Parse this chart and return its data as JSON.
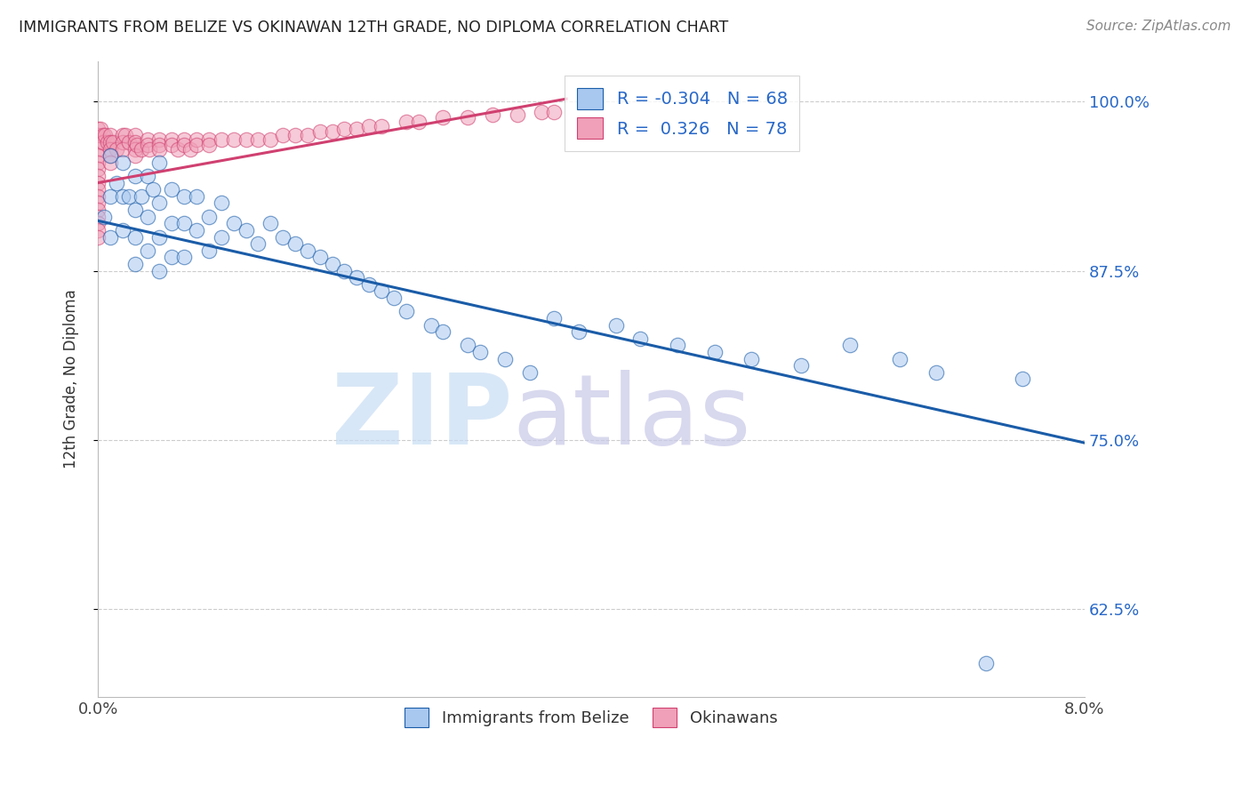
{
  "title": "IMMIGRANTS FROM BELIZE VS OKINAWAN 12TH GRADE, NO DIPLOMA CORRELATION CHART",
  "source": "Source: ZipAtlas.com",
  "ylabel": "12th Grade, No Diploma",
  "ytick_labels": [
    "100.0%",
    "87.5%",
    "75.0%",
    "62.5%"
  ],
  "ytick_values": [
    1.0,
    0.875,
    0.75,
    0.625
  ],
  "xlim": [
    0.0,
    0.08
  ],
  "ylim": [
    0.56,
    1.03
  ],
  "legend_r_belize": "-0.304",
  "legend_n_belize": "68",
  "legend_r_okinawan": "0.326",
  "legend_n_okinawan": "78",
  "color_belize": "#a8c8f0",
  "color_okinawan": "#f0a0b8",
  "trendline_color_belize": "#1a5ca8",
  "trendline_color_okinawan": "#d04070",
  "belize_trendline_x": [
    0.0,
    0.08
  ],
  "belize_trendline_y": [
    0.912,
    0.748
  ],
  "okinawan_trendline_x": [
    0.0,
    0.038
  ],
  "okinawan_trendline_y": [
    0.94,
    1.002
  ],
  "belize_x": [
    0.0005,
    0.001,
    0.001,
    0.001,
    0.0015,
    0.002,
    0.002,
    0.002,
    0.0025,
    0.003,
    0.003,
    0.003,
    0.003,
    0.0035,
    0.004,
    0.004,
    0.004,
    0.0045,
    0.005,
    0.005,
    0.005,
    0.005,
    0.006,
    0.006,
    0.006,
    0.007,
    0.007,
    0.007,
    0.008,
    0.008,
    0.009,
    0.009,
    0.01,
    0.01,
    0.011,
    0.012,
    0.013,
    0.014,
    0.015,
    0.016,
    0.017,
    0.018,
    0.019,
    0.02,
    0.021,
    0.022,
    0.023,
    0.024,
    0.025,
    0.027,
    0.028,
    0.03,
    0.031,
    0.033,
    0.035,
    0.037,
    0.039,
    0.042,
    0.044,
    0.047,
    0.05,
    0.053,
    0.057,
    0.061,
    0.065,
    0.068,
    0.072,
    0.075
  ],
  "belize_y": [
    0.915,
    0.96,
    0.93,
    0.9,
    0.94,
    0.955,
    0.93,
    0.905,
    0.93,
    0.945,
    0.92,
    0.9,
    0.88,
    0.93,
    0.945,
    0.915,
    0.89,
    0.935,
    0.955,
    0.925,
    0.9,
    0.875,
    0.935,
    0.91,
    0.885,
    0.93,
    0.91,
    0.885,
    0.93,
    0.905,
    0.915,
    0.89,
    0.925,
    0.9,
    0.91,
    0.905,
    0.895,
    0.91,
    0.9,
    0.895,
    0.89,
    0.885,
    0.88,
    0.875,
    0.87,
    0.865,
    0.86,
    0.855,
    0.845,
    0.835,
    0.83,
    0.82,
    0.815,
    0.81,
    0.8,
    0.84,
    0.83,
    0.835,
    0.825,
    0.82,
    0.815,
    0.81,
    0.805,
    0.82,
    0.81,
    0.8,
    0.585,
    0.795
  ],
  "okinawan_x": [
    0.0,
    0.0,
    0.0,
    0.0,
    0.0,
    0.0002,
    0.0004,
    0.0004,
    0.0006,
    0.0008,
    0.001,
    0.001,
    0.001,
    0.0012,
    0.0015,
    0.002,
    0.002,
    0.002,
    0.0022,
    0.0025,
    0.003,
    0.003,
    0.003,
    0.003,
    0.0032,
    0.0035,
    0.004,
    0.004,
    0.0042,
    0.005,
    0.005,
    0.005,
    0.006,
    0.006,
    0.0065,
    0.007,
    0.007,
    0.0075,
    0.008,
    0.008,
    0.009,
    0.009,
    0.01,
    0.011,
    0.012,
    0.013,
    0.014,
    0.015,
    0.016,
    0.017,
    0.018,
    0.019,
    0.02,
    0.021,
    0.022,
    0.023,
    0.025,
    0.026,
    0.028,
    0.03,
    0.032,
    0.034,
    0.036,
    0.037,
    0.0,
    0.0,
    0.0,
    0.0,
    0.0,
    0.0,
    0.0,
    0.0,
    0.0,
    0.0,
    0.0,
    0.0,
    0.001,
    0.001
  ],
  "okinawan_y": [
    0.98,
    0.975,
    0.97,
    0.965,
    0.96,
    0.98,
    0.975,
    0.97,
    0.975,
    0.97,
    0.975,
    0.97,
    0.965,
    0.97,
    0.965,
    0.975,
    0.97,
    0.965,
    0.975,
    0.97,
    0.975,
    0.97,
    0.965,
    0.96,
    0.968,
    0.965,
    0.972,
    0.968,
    0.965,
    0.972,
    0.968,
    0.965,
    0.972,
    0.968,
    0.965,
    0.972,
    0.968,
    0.965,
    0.972,
    0.968,
    0.972,
    0.968,
    0.972,
    0.972,
    0.972,
    0.972,
    0.972,
    0.975,
    0.975,
    0.975,
    0.978,
    0.978,
    0.98,
    0.98,
    0.982,
    0.982,
    0.985,
    0.985,
    0.988,
    0.988,
    0.99,
    0.99,
    0.992,
    0.992,
    0.955,
    0.95,
    0.945,
    0.94,
    0.935,
    0.93,
    0.925,
    0.92,
    0.915,
    0.91,
    0.905,
    0.9,
    0.96,
    0.955
  ]
}
